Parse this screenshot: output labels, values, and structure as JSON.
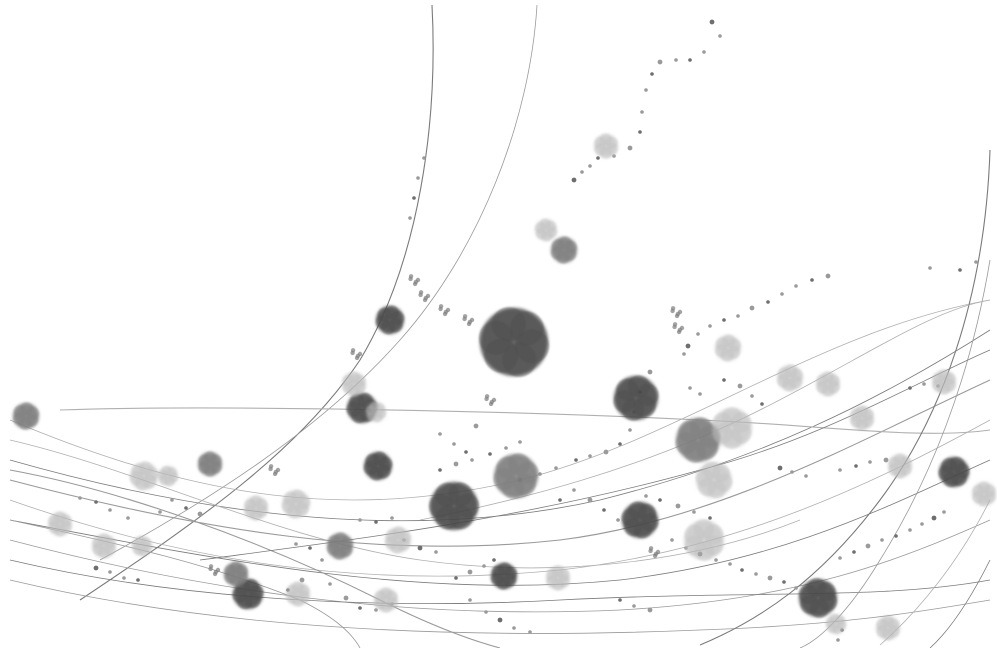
{
  "artwork": {
    "background": "#ffffff",
    "palette": {
      "dark": "#4a4a4a",
      "mid": "#7d7d7d",
      "light": "#b8b8b8",
      "faint": "#d4d4d4",
      "line": "#8a8a8a"
    }
  }
}
